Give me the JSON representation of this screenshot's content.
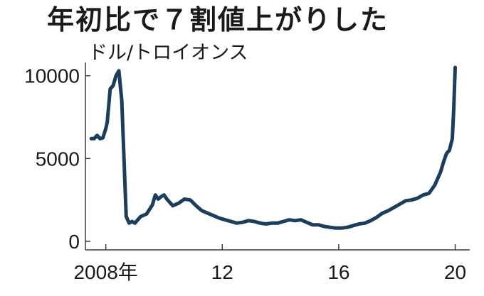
{
  "chart_data": {
    "type": "line",
    "title": "年初比で７割値上がりした",
    "unit_label": "ドル/トロイオンス",
    "xlabel": "",
    "ylabel": "",
    "ylim": [
      0,
      10500
    ],
    "xlim": [
      2007.3,
      2020.5
    ],
    "yticks": [
      {
        "value": 0,
        "label": "0"
      },
      {
        "value": 5000,
        "label": "5000"
      },
      {
        "value": 10000,
        "label": "10000"
      }
    ],
    "xticks": [
      {
        "value": 2008,
        "label": "2008年"
      },
      {
        "value": 2012,
        "label": "12"
      },
      {
        "value": 2016,
        "label": "16"
      },
      {
        "value": 2020,
        "label": "20"
      }
    ],
    "grid": false,
    "line_color": "#1d3d5c",
    "series": [
      {
        "name": "",
        "x": [
          2007.5,
          2007.6,
          2007.7,
          2007.8,
          2007.9,
          2008.0,
          2008.05,
          2008.15,
          2008.25,
          2008.35,
          2008.45,
          2008.55,
          2008.7,
          2008.8,
          2008.9,
          2009.0,
          2009.2,
          2009.4,
          2009.6,
          2009.7,
          2009.8,
          2009.9,
          2010.0,
          2010.1,
          2010.3,
          2010.5,
          2010.7,
          2010.9,
          2011.1,
          2011.3,
          2011.5,
          2011.7,
          2011.9,
          2012.1,
          2012.3,
          2012.5,
          2012.7,
          2012.9,
          2013.1,
          2013.3,
          2013.5,
          2013.7,
          2013.9,
          2014.1,
          2014.3,
          2014.5,
          2014.7,
          2014.9,
          2015.1,
          2015.3,
          2015.5,
          2015.7,
          2015.9,
          2016.1,
          2016.3,
          2016.5,
          2016.7,
          2016.9,
          2017.1,
          2017.3,
          2017.5,
          2017.7,
          2017.9,
          2018.1,
          2018.3,
          2018.5,
          2018.7,
          2018.9,
          2019.1,
          2019.3,
          2019.5,
          2019.6,
          2019.7,
          2019.8,
          2019.9,
          2019.95,
          2020.0
        ],
        "values": [
          6200,
          6200,
          6400,
          6200,
          6250,
          6800,
          7200,
          9200,
          9400,
          10000,
          10300,
          8500,
          1500,
          1100,
          1200,
          1100,
          1500,
          1650,
          2200,
          2800,
          2550,
          2700,
          2800,
          2550,
          2150,
          2300,
          2550,
          2500,
          2150,
          1850,
          1700,
          1550,
          1400,
          1300,
          1200,
          1100,
          1150,
          1250,
          1200,
          1100,
          1050,
          1100,
          1100,
          1200,
          1300,
          1250,
          1300,
          1150,
          1000,
          1000,
          900,
          850,
          800,
          800,
          850,
          950,
          1050,
          1100,
          1250,
          1450,
          1700,
          1850,
          2050,
          2250,
          2450,
          2500,
          2600,
          2800,
          2900,
          3400,
          4200,
          4800,
          5300,
          5500,
          6200,
          8000,
          10500
        ]
      }
    ]
  }
}
